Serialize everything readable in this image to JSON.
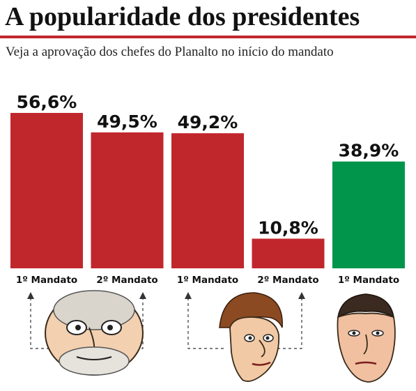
{
  "header": {
    "title": "A popularidade dos presidentes",
    "subtitle": "Veja a aprovação dos chefes do Planalto no início do mandato"
  },
  "colors": {
    "accent": "#c0272d",
    "bar_red": "#c0272d",
    "bar_green": "#00954a"
  },
  "chart_data": {
    "type": "bar",
    "title": "A popularidade dos presidentes",
    "subtitle": "Veja a aprovação dos chefes do Planalto no início do mandato",
    "categories": [
      "1º Mandato",
      "2º Mandato",
      "1º Mandato",
      "2º Mandato",
      "1º Mandato"
    ],
    "values": [
      56.6,
      49.5,
      49.2,
      10.8,
      38.9
    ],
    "value_labels": [
      "56,6%",
      "49,5%",
      "49,2%",
      "10,8%",
      "38,9%"
    ],
    "bar_colors": [
      "#c0272d",
      "#c0272d",
      "#c0272d",
      "#c0272d",
      "#00954a"
    ],
    "xlabel": "",
    "ylabel": "",
    "ylim": [
      0,
      56.6
    ],
    "grid": false,
    "legend": "none"
  },
  "illustrations": [
    {
      "name": "lula-caricature-icon",
      "icon": "caricature"
    },
    {
      "name": "dilma-caricature-icon",
      "icon": "caricature"
    },
    {
      "name": "bolsonaro-caricature-icon",
      "icon": "caricature"
    }
  ]
}
